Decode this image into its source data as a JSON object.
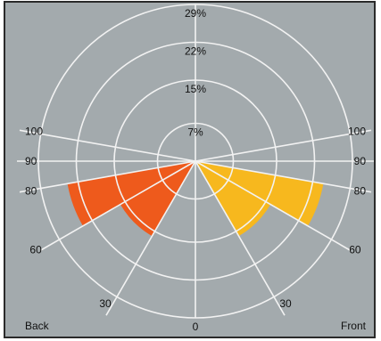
{
  "chart_data": {
    "type": "polar-bar",
    "title": "",
    "radial_ticks": [
      "7%",
      "15%",
      "22%",
      "29%"
    ],
    "radial_values": [
      7,
      15,
      22,
      29
    ],
    "radial_max": 29,
    "angle_ticks": [
      {
        "label": "0",
        "side": "both",
        "angle": 0
      },
      {
        "label": "30",
        "side": "both",
        "angle": 30
      },
      {
        "label": "60",
        "side": "both",
        "angle": 60
      },
      {
        "label": "80",
        "side": "both",
        "angle": 80
      },
      {
        "label": "90",
        "side": "both",
        "angle": 90
      },
      {
        "label": "100",
        "side": "both",
        "angle": 100
      }
    ],
    "corner_labels": {
      "left": "Back",
      "right": "Front"
    },
    "colors": {
      "back": "#ee5a1c",
      "front": "#f7b81e",
      "grid": "#f2f2f2",
      "background": "#a3aaad"
    },
    "series": [
      {
        "side": "back",
        "wedges": [
          {
            "from_angle": 30,
            "to_angle": 60,
            "value": 16
          },
          {
            "from_angle": 60,
            "to_angle": 80,
            "value": 24
          }
        ]
      },
      {
        "side": "front",
        "wedges": [
          {
            "from_angle": 30,
            "to_angle": 60,
            "value": 16
          },
          {
            "from_angle": 60,
            "to_angle": 80,
            "value": 24
          }
        ]
      }
    ]
  }
}
